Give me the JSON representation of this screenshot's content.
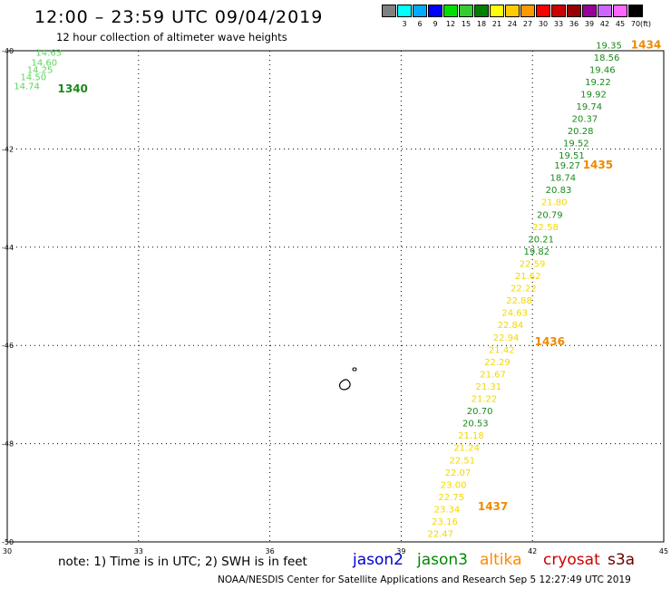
{
  "header": {
    "title": "12:00 – 23:59 UTC 09/04/2019",
    "subtitle": "12 hour collection of altimeter wave heights"
  },
  "color_scale": {
    "unit": "(ft)",
    "entries": [
      {
        "label": "",
        "color": "#808080"
      },
      {
        "label": "3",
        "color": "#00ffff"
      },
      {
        "label": "6",
        "color": "#00aaff"
      },
      {
        "label": "9",
        "color": "#0000ff"
      },
      {
        "label": "12",
        "color": "#00e000"
      },
      {
        "label": "15",
        "color": "#33cc33"
      },
      {
        "label": "18",
        "color": "#008000"
      },
      {
        "label": "21",
        "color": "#ffff00"
      },
      {
        "label": "24",
        "color": "#ffcc00"
      },
      {
        "label": "27",
        "color": "#ff9900"
      },
      {
        "label": "30",
        "color": "#ff0000"
      },
      {
        "label": "33",
        "color": "#cc0000"
      },
      {
        "label": "36",
        "color": "#990000"
      },
      {
        "label": "39",
        "color": "#990099"
      },
      {
        "label": "42",
        "color": "#cc66ff"
      },
      {
        "label": "45",
        "color": "#ff66ff"
      },
      {
        "label": "70",
        "color": "#000000"
      }
    ]
  },
  "map": {
    "lon_range": [
      30,
      45
    ],
    "lat_range": [
      -50,
      -40
    ],
    "lon_ticks": [
      "30",
      "33",
      "36",
      "39",
      "42",
      "45"
    ],
    "lat_ticks": [
      "-40",
      "-42",
      "-44",
      "-46",
      "-48",
      "-50"
    ],
    "grid": "dotted",
    "track_colors": {
      "green": "#1a8a1a",
      "yellow": "#f2d800",
      "lightgreen": "#5cd65c",
      "orange": "#ee8a00"
    },
    "track_left": {
      "time_label": "1340",
      "points": [
        {
          "lon": 30.65,
          "lat": -40.1,
          "v": "14.63",
          "c": "lightgreen"
        },
        {
          "lon": 30.55,
          "lat": -40.3,
          "v": "14.60",
          "c": "lightgreen"
        },
        {
          "lon": 30.45,
          "lat": -40.45,
          "v": "14.25",
          "c": "lightgreen"
        },
        {
          "lon": 30.3,
          "lat": -40.6,
          "v": "14.50",
          "c": "lightgreen"
        },
        {
          "lon": 30.15,
          "lat": -40.78,
          "v": "14.74",
          "c": "lightgreen"
        }
      ]
    },
    "track_right": {
      "time_labels": [
        {
          "text": "1434",
          "lon": 44.25,
          "lat": -39.95
        },
        {
          "text": "1435",
          "lon": 43.15,
          "lat": -42.4
        },
        {
          "text": "1436",
          "lon": 42.05,
          "lat": -46.0
        },
        {
          "text": "1437",
          "lon": 40.75,
          "lat": -49.35
        }
      ],
      "points": [
        {
          "lon": 43.45,
          "lat": -39.95,
          "v": "19.35",
          "c": "green"
        },
        {
          "lon": 43.4,
          "lat": -40.2,
          "v": "18.56",
          "c": "green"
        },
        {
          "lon": 43.3,
          "lat": -40.45,
          "v": "19.46",
          "c": "green"
        },
        {
          "lon": 43.2,
          "lat": -40.7,
          "v": "19.22",
          "c": "green"
        },
        {
          "lon": 43.1,
          "lat": -40.95,
          "v": "19.92",
          "c": "green"
        },
        {
          "lon": 43.0,
          "lat": -41.2,
          "v": "19.74",
          "c": "green"
        },
        {
          "lon": 42.9,
          "lat": -41.45,
          "v": "20.37",
          "c": "green"
        },
        {
          "lon": 42.8,
          "lat": -41.7,
          "v": "20.28",
          "c": "green"
        },
        {
          "lon": 42.7,
          "lat": -41.95,
          "v": "19.52",
          "c": "green"
        },
        {
          "lon": 42.6,
          "lat": -42.2,
          "v": "19.51",
          "c": "green"
        },
        {
          "lon": 42.5,
          "lat": -42.4,
          "v": "19.27",
          "c": "green"
        },
        {
          "lon": 42.4,
          "lat": -42.65,
          "v": "18.74",
          "c": "green"
        },
        {
          "lon": 42.3,
          "lat": -42.9,
          "v": "20.83",
          "c": "green"
        },
        {
          "lon": 42.2,
          "lat": -43.15,
          "v": "21.80",
          "c": "yellow"
        },
        {
          "lon": 42.1,
          "lat": -43.4,
          "v": "20.79",
          "c": "green"
        },
        {
          "lon": 42.0,
          "lat": -43.65,
          "v": "22.58",
          "c": "yellow"
        },
        {
          "lon": 41.9,
          "lat": -43.9,
          "v": "20.21",
          "c": "green"
        },
        {
          "lon": 41.8,
          "lat": -44.15,
          "v": "19.82",
          "c": "green"
        },
        {
          "lon": 41.7,
          "lat": -44.4,
          "v": "22.59",
          "c": "yellow"
        },
        {
          "lon": 41.6,
          "lat": -44.65,
          "v": "21.62",
          "c": "yellow"
        },
        {
          "lon": 41.5,
          "lat": -44.9,
          "v": "22.22",
          "c": "yellow"
        },
        {
          "lon": 41.4,
          "lat": -45.15,
          "v": "22.88",
          "c": "yellow"
        },
        {
          "lon": 41.3,
          "lat": -45.4,
          "v": "24.63",
          "c": "yellow"
        },
        {
          "lon": 41.2,
          "lat": -45.65,
          "v": "22.84",
          "c": "yellow"
        },
        {
          "lon": 41.1,
          "lat": -45.9,
          "v": "22.94",
          "c": "yellow"
        },
        {
          "lon": 41.0,
          "lat": -46.15,
          "v": "21.42",
          "c": "yellow"
        },
        {
          "lon": 40.9,
          "lat": -46.4,
          "v": "22.29",
          "c": "yellow"
        },
        {
          "lon": 40.8,
          "lat": -46.65,
          "v": "21.67",
          "c": "yellow"
        },
        {
          "lon": 40.7,
          "lat": -46.9,
          "v": "21.31",
          "c": "yellow"
        },
        {
          "lon": 40.6,
          "lat": -47.15,
          "v": "21.22",
          "c": "yellow"
        },
        {
          "lon": 40.5,
          "lat": -47.4,
          "v": "20.70",
          "c": "green"
        },
        {
          "lon": 40.4,
          "lat": -47.65,
          "v": "20.53",
          "c": "green"
        },
        {
          "lon": 40.3,
          "lat": -47.9,
          "v": "21.18",
          "c": "yellow"
        },
        {
          "lon": 40.2,
          "lat": -48.15,
          "v": "21.24",
          "c": "yellow"
        },
        {
          "lon": 40.1,
          "lat": -48.4,
          "v": "22.51",
          "c": "yellow"
        },
        {
          "lon": 40.0,
          "lat": -48.65,
          "v": "22.07",
          "c": "yellow"
        },
        {
          "lon": 39.9,
          "lat": -48.9,
          "v": "23.00",
          "c": "yellow"
        },
        {
          "lon": 39.85,
          "lat": -49.15,
          "v": "22.75",
          "c": "yellow"
        },
        {
          "lon": 39.75,
          "lat": -49.4,
          "v": "23.34",
          "c": "yellow"
        },
        {
          "lon": 39.7,
          "lat": -49.65,
          "v": "23.16",
          "c": "yellow"
        },
        {
          "lon": 39.6,
          "lat": -49.9,
          "v": "22.47",
          "c": "yellow"
        }
      ]
    }
  },
  "note": "note: 1) Time is in UTC; 2) SWH is in feet",
  "satellites": [
    {
      "name": "jason2",
      "color": "#0000cc"
    },
    {
      "name": "jason3",
      "color": "#008800"
    },
    {
      "name": "altika",
      "color": "#ff8800"
    },
    {
      "name": "cryosat",
      "color": "#cc0000"
    },
    {
      "name": "s3a",
      "color": "#660000"
    }
  ],
  "footer": "NOAA/NESDIS Center for Satellite Applications and Research   Sep  5 12:27:49 UTC 2019"
}
